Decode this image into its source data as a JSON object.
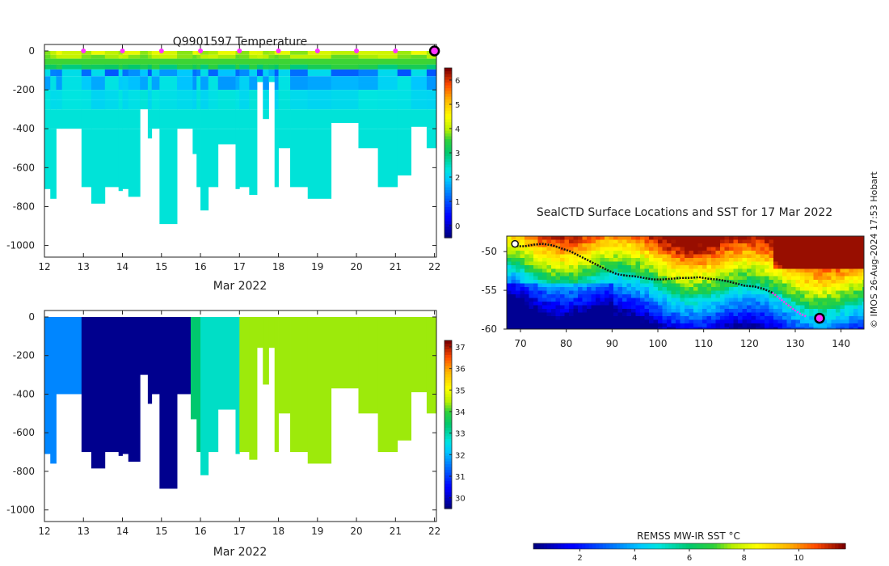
{
  "credit": "© IMOS 26-Aug-2024 17:53 Hobart",
  "colors": {
    "track": "#111111",
    "recent_track": "#ff33ff",
    "marker_fill": "#ff33ff",
    "marker_edge": "#000000",
    "axis": "#222222"
  },
  "chart_data": [
    {
      "type": "heatmap",
      "id": "temperature",
      "title": "Q9901597  Temperature",
      "xlabel": "Mar 2022",
      "ylabel": "",
      "x_ticks": [
        "12",
        "13",
        "14",
        "15",
        "16",
        "17",
        "18",
        "19",
        "20",
        "21",
        "22"
      ],
      "y_ticks": [
        "0",
        "-200",
        "-400",
        "-600",
        "-800",
        "-1000"
      ],
      "xlim": [
        12,
        22.05
      ],
      "ylim": [
        -1060,
        0
      ],
      "colorbar": {
        "ticks": [
          "0",
          "1",
          "2",
          "3",
          "4",
          "5",
          "6"
        ],
        "range": [
          -0.5,
          6.5
        ]
      },
      "surface_markers_x": [
        13,
        14,
        15,
        16,
        17,
        18,
        19,
        20,
        21
      ],
      "latest_marker_x": 22,
      "profiles": [
        {
          "start": 12.0,
          "end": 12.15,
          "max_depth": -710
        },
        {
          "start": 12.15,
          "end": 12.3,
          "max_depth": -760
        },
        {
          "start": 12.3,
          "end": 12.45,
          "max_depth": -400
        },
        {
          "start": 12.45,
          "end": 12.95,
          "max_depth": -400
        },
        {
          "start": 12.95,
          "end": 13.2,
          "max_depth": -700
        },
        {
          "start": 13.2,
          "end": 13.55,
          "max_depth": -785
        },
        {
          "start": 13.55,
          "end": 13.9,
          "max_depth": -700
        },
        {
          "start": 13.9,
          "end": 14.0,
          "max_depth": -720
        },
        {
          "start": 14.0,
          "end": 14.15,
          "max_depth": -710
        },
        {
          "start": 14.15,
          "end": 14.45,
          "max_depth": -750
        },
        {
          "start": 14.45,
          "end": 14.65,
          "max_depth": -300
        },
        {
          "start": 14.65,
          "end": 14.75,
          "max_depth": -450
        },
        {
          "start": 14.75,
          "end": 14.95,
          "max_depth": -400
        },
        {
          "start": 14.95,
          "end": 15.4,
          "max_depth": -890
        },
        {
          "start": 15.4,
          "end": 15.8,
          "max_depth": -400
        },
        {
          "start": 15.8,
          "end": 15.9,
          "max_depth": -530
        },
        {
          "start": 15.9,
          "end": 16.0,
          "max_depth": -700
        },
        {
          "start": 16.0,
          "end": 16.2,
          "max_depth": -820
        },
        {
          "start": 16.2,
          "end": 16.45,
          "max_depth": -700
        },
        {
          "start": 16.45,
          "end": 16.9,
          "max_depth": -480
        },
        {
          "start": 16.9,
          "end": 17.0,
          "max_depth": -710
        },
        {
          "start": 17.0,
          "end": 17.25,
          "max_depth": -700
        },
        {
          "start": 17.25,
          "end": 17.45,
          "max_depth": -740
        },
        {
          "start": 17.45,
          "end": 17.6,
          "max_depth": -160
        },
        {
          "start": 17.6,
          "end": 17.75,
          "max_depth": -350
        },
        {
          "start": 17.75,
          "end": 17.9,
          "max_depth": -160
        },
        {
          "start": 17.9,
          "end": 18.0,
          "max_depth": -700
        },
        {
          "start": 18.0,
          "end": 18.3,
          "max_depth": -500
        },
        {
          "start": 18.3,
          "end": 18.75,
          "max_depth": -700
        },
        {
          "start": 18.75,
          "end": 19.35,
          "max_depth": -760
        },
        {
          "start": 19.35,
          "end": 20.05,
          "max_depth": -370
        },
        {
          "start": 20.05,
          "end": 20.55,
          "max_depth": -500
        },
        {
          "start": 20.55,
          "end": 21.05,
          "max_depth": -700
        },
        {
          "start": 21.05,
          "end": 21.4,
          "max_depth": -640
        },
        {
          "start": 21.4,
          "end": 21.8,
          "max_depth": -390
        },
        {
          "start": 21.8,
          "end": 22.05,
          "max_depth": -500
        }
      ]
    },
    {
      "type": "heatmap",
      "id": "salinity",
      "title": "",
      "xlabel": "Mar 2022",
      "ylabel": "",
      "x_ticks": [
        "12",
        "13",
        "14",
        "15",
        "16",
        "17",
        "18",
        "19",
        "20",
        "21",
        "22"
      ],
      "y_ticks": [
        "0",
        "-200",
        "-400",
        "-600",
        "-800",
        "-1000"
      ],
      "xlim": [
        12,
        22.05
      ],
      "ylim": [
        -1060,
        0
      ],
      "colorbar": {
        "ticks": [
          "30",
          "31",
          "32",
          "33",
          "34",
          "35",
          "36",
          "37"
        ],
        "range": [
          29.5,
          37.3
        ]
      },
      "blocks": [
        {
          "start": 12.0,
          "end": 12.15,
          "max_depth": -710,
          "value": 31.6
        },
        {
          "start": 12.15,
          "end": 12.3,
          "max_depth": -760,
          "value": 31.6
        },
        {
          "start": 12.3,
          "end": 12.95,
          "max_depth": -400,
          "value": 31.6
        },
        {
          "start": 12.95,
          "end": 13.2,
          "max_depth": -700,
          "value": 29.6
        },
        {
          "start": 13.2,
          "end": 13.55,
          "max_depth": -785,
          "value": 29.6
        },
        {
          "start": 13.55,
          "end": 13.9,
          "max_depth": -700,
          "value": 29.6
        },
        {
          "start": 13.9,
          "end": 14.0,
          "max_depth": -720,
          "value": 29.6
        },
        {
          "start": 14.0,
          "end": 14.15,
          "max_depth": -710,
          "value": 29.6
        },
        {
          "start": 14.15,
          "end": 14.45,
          "max_depth": -750,
          "value": 29.6
        },
        {
          "start": 14.45,
          "end": 14.65,
          "max_depth": -300,
          "value": 29.6
        },
        {
          "start": 14.65,
          "end": 14.75,
          "max_depth": -450,
          "value": 29.6
        },
        {
          "start": 14.75,
          "end": 14.95,
          "max_depth": -400,
          "value": 29.6
        },
        {
          "start": 14.95,
          "end": 15.4,
          "max_depth": -890,
          "value": 29.6
        },
        {
          "start": 15.4,
          "end": 15.75,
          "max_depth": -400,
          "value": 29.6
        },
        {
          "start": 15.75,
          "end": 15.9,
          "max_depth": -530,
          "value": 33.4
        },
        {
          "start": 15.9,
          "end": 16.0,
          "max_depth": -700,
          "value": 33.4
        },
        {
          "start": 16.0,
          "end": 16.2,
          "max_depth": -820,
          "value": 32.8
        },
        {
          "start": 16.2,
          "end": 16.45,
          "max_depth": -700,
          "value": 32.8
        },
        {
          "start": 16.45,
          "end": 16.9,
          "max_depth": -480,
          "value": 32.8
        },
        {
          "start": 16.9,
          "end": 17.0,
          "max_depth": -710,
          "value": 32.8
        },
        {
          "start": 17.0,
          "end": 17.25,
          "max_depth": -700,
          "value": 34.4
        },
        {
          "start": 17.25,
          "end": 17.45,
          "max_depth": -740,
          "value": 34.4
        },
        {
          "start": 17.45,
          "end": 17.6,
          "max_depth": -160,
          "value": 34.4
        },
        {
          "start": 17.6,
          "end": 17.75,
          "max_depth": -350,
          "value": 34.4
        },
        {
          "start": 17.75,
          "end": 17.9,
          "max_depth": -160,
          "value": 34.4
        },
        {
          "start": 17.9,
          "end": 18.0,
          "max_depth": -700,
          "value": 34.4
        },
        {
          "start": 18.0,
          "end": 18.3,
          "max_depth": -500,
          "value": 34.4
        },
        {
          "start": 18.3,
          "end": 18.75,
          "max_depth": -700,
          "value": 34.4
        },
        {
          "start": 18.75,
          "end": 19.35,
          "max_depth": -760,
          "value": 34.4
        },
        {
          "start": 19.35,
          "end": 20.05,
          "max_depth": -370,
          "value": 34.4
        },
        {
          "start": 20.05,
          "end": 20.55,
          "max_depth": -500,
          "value": 34.4
        },
        {
          "start": 20.55,
          "end": 21.05,
          "max_depth": -700,
          "value": 34.4
        },
        {
          "start": 21.05,
          "end": 21.4,
          "max_depth": -640,
          "value": 34.4
        },
        {
          "start": 21.4,
          "end": 21.8,
          "max_depth": -390,
          "value": 34.4
        },
        {
          "start": 21.8,
          "end": 22.05,
          "max_depth": -500,
          "value": 34.4
        }
      ]
    },
    {
      "type": "heatmap",
      "id": "sst_map",
      "title": "SealCTD Surface Locations and SST for 17 Mar 2022",
      "x_ticks": [
        "70",
        "80",
        "90",
        "100",
        "110",
        "120",
        "130",
        "140"
      ],
      "y_ticks": [
        "-50",
        "-55",
        "-60"
      ],
      "xlim": [
        67,
        145
      ],
      "ylim": [
        -60,
        -48
      ],
      "colorbar_label": "REMSS MW-IR SST °C",
      "colorbar": {
        "ticks": [
          "2",
          "4",
          "6",
          "8",
          "10"
        ],
        "range": [
          0.3,
          11.7
        ]
      },
      "track": [
        [
          68.7,
          -49.0
        ],
        [
          69.5,
          -49.3
        ],
        [
          71,
          -49.3
        ],
        [
          73,
          -49.1
        ],
        [
          75,
          -49.0
        ],
        [
          77,
          -49.2
        ],
        [
          79,
          -49.6
        ],
        [
          81,
          -50.0
        ],
        [
          83,
          -50.6
        ],
        [
          85,
          -51.2
        ],
        [
          87,
          -51.8
        ],
        [
          89,
          -52.4
        ],
        [
          91,
          -52.9
        ],
        [
          93,
          -53.1
        ],
        [
          95,
          -53.2
        ],
        [
          97,
          -53.4
        ],
        [
          99,
          -53.6
        ],
        [
          101,
          -53.6
        ],
        [
          103,
          -53.5
        ],
        [
          105,
          -53.4
        ],
        [
          107,
          -53.4
        ],
        [
          109,
          -53.3
        ],
        [
          111,
          -53.5
        ],
        [
          113,
          -53.6
        ],
        [
          115,
          -53.8
        ],
        [
          117,
          -54.1
        ],
        [
          119,
          -54.4
        ],
        [
          121,
          -54.5
        ],
        [
          123,
          -54.8
        ],
        [
          125,
          -55.3
        ]
      ],
      "recent_track": [
        [
          125,
          -55.3
        ],
        [
          126.5,
          -56.0
        ],
        [
          128,
          -56.7
        ],
        [
          129.5,
          -57.4
        ],
        [
          131,
          -58.0
        ],
        [
          132.5,
          -58.4
        ]
      ],
      "track_start": [
        68.8,
        -49.0
      ],
      "latest_position": [
        135.3,
        -58.6
      ]
    }
  ]
}
